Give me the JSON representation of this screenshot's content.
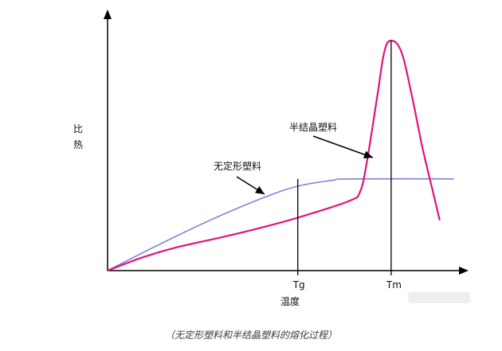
{
  "chart_data": {
    "type": "line",
    "ylabel": "比热",
    "xlabel": "温度",
    "x_ticks": [
      "Tg",
      "Tm"
    ],
    "series": [
      {
        "name": "无定形塑料",
        "color": "#8080e0",
        "points": [
          [
            0,
            0
          ],
          [
            15,
            18
          ],
          [
            30,
            35
          ],
          [
            45,
            50
          ],
          [
            55,
            58
          ],
          [
            65,
            62
          ],
          [
            70,
            63
          ],
          [
            100,
            63
          ]
        ]
      },
      {
        "name": "半结晶塑料",
        "color": "#e0147a",
        "points": [
          [
            0,
            0
          ],
          [
            10,
            9
          ],
          [
            20,
            16
          ],
          [
            35,
            24
          ],
          [
            50,
            33
          ],
          [
            60,
            40
          ],
          [
            70,
            48
          ],
          [
            73,
            54
          ],
          [
            75,
            75
          ],
          [
            78,
            120
          ],
          [
            80,
            150
          ],
          [
            82,
            158
          ],
          [
            85,
            150
          ],
          [
            88,
            120
          ],
          [
            91,
            85
          ],
          [
            94,
            55
          ],
          [
            96,
            35
          ]
        ]
      }
    ],
    "markers": [
      {
        "label": "Tg",
        "x": 55
      },
      {
        "label": "Tm",
        "x": 82
      }
    ],
    "annotations": [
      {
        "text": "无定形塑料",
        "target_series": 0
      },
      {
        "text": "半结晶塑料",
        "target_series": 1
      }
    ],
    "grid": false,
    "legend": "none"
  },
  "caption": "（无定形塑料和半结晶塑料的熔化过程）"
}
